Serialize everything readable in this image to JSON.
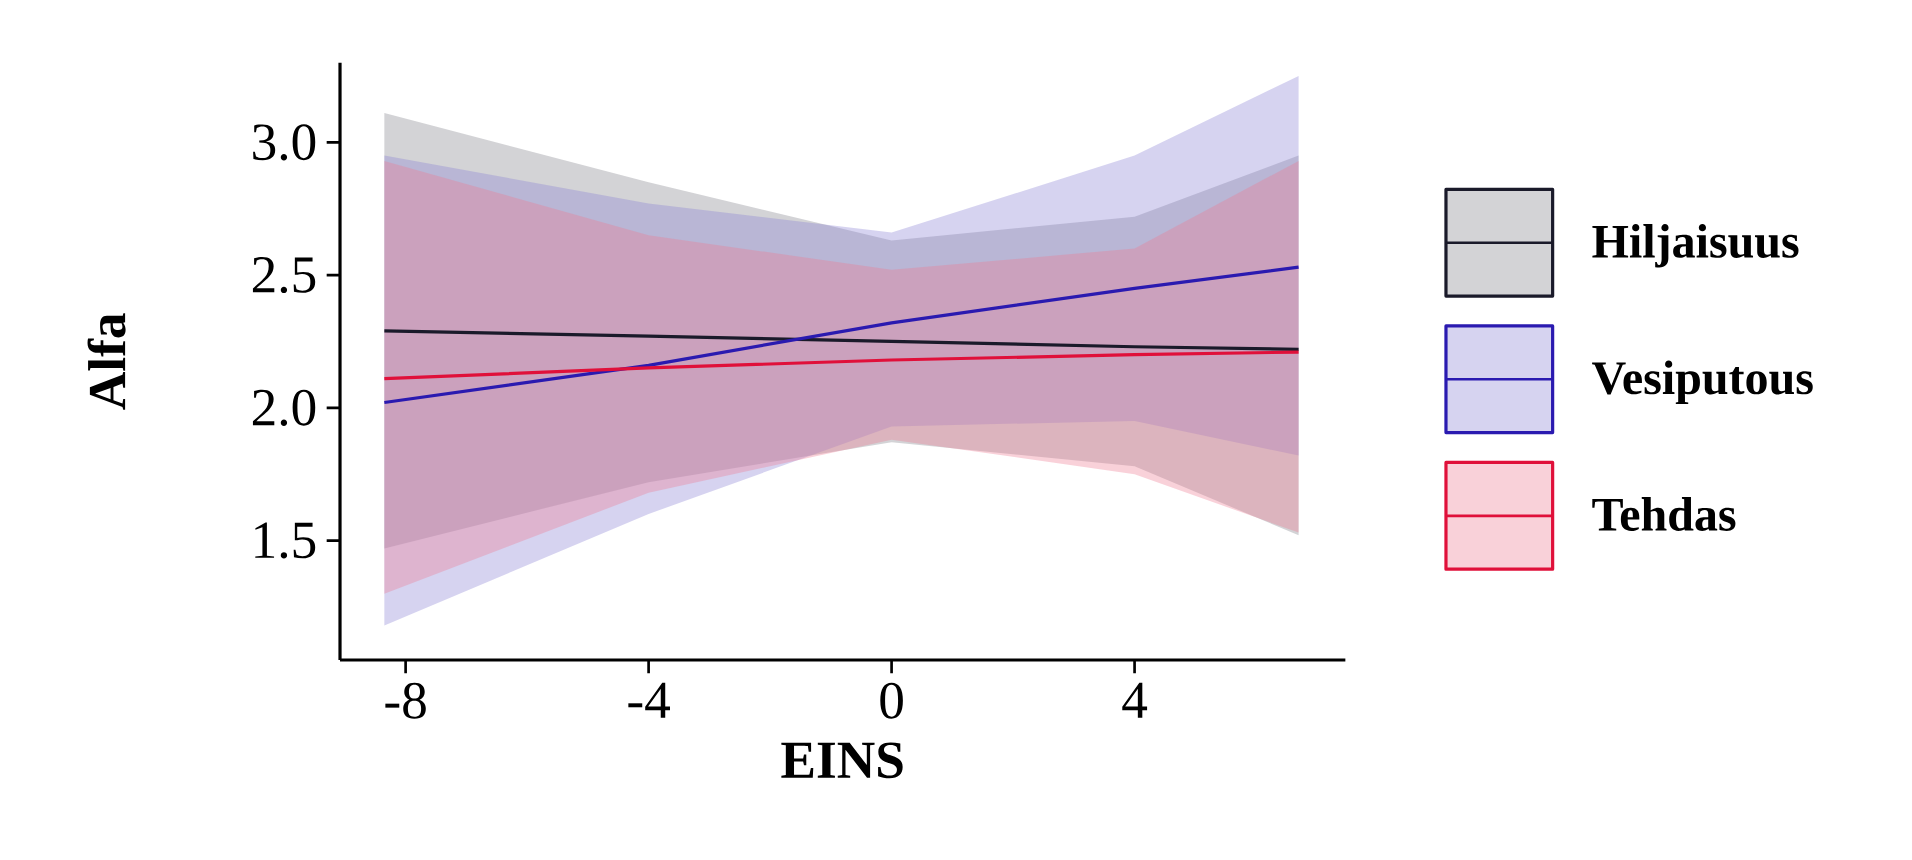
{
  "chart_data": {
    "type": "line",
    "xlabel": "EINS",
    "ylabel": "Alfa",
    "xlim": [
      -9.08,
      7.47
    ],
    "ylim": [
      1.05,
      3.3
    ],
    "xticks": [
      -8,
      -4,
      0,
      4
    ],
    "yticks": [
      {
        "value": 1.5,
        "label": "1.5"
      },
      {
        "value": 2.0,
        "label": "2.0"
      },
      {
        "value": 2.5,
        "label": "2.5"
      },
      {
        "value": 3.0,
        "label": "3.0"
      }
    ],
    "grid": false,
    "legend": "right",
    "marker": "none",
    "line_style": "solid",
    "series": [
      {
        "name": "Hiljaisuus",
        "color": "#1a1a2a",
        "x": [
          -8.35,
          -4,
          0,
          4,
          6.7
        ],
        "values": [
          2.29,
          2.27,
          2.25,
          2.23,
          2.22
        ],
        "lower": [
          1.47,
          1.72,
          1.87,
          1.78,
          1.52
        ],
        "upper": [
          3.11,
          2.85,
          2.63,
          2.72,
          2.95
        ]
      },
      {
        "name": "Vesiputous",
        "color": "#2a1ab0",
        "x": [
          -8.35,
          -4,
          0,
          4,
          6.7
        ],
        "values": [
          2.02,
          2.16,
          2.32,
          2.45,
          2.53
        ],
        "lower": [
          1.18,
          1.6,
          1.93,
          1.95,
          1.82
        ],
        "upper": [
          2.95,
          2.77,
          2.66,
          2.95,
          3.25
        ]
      },
      {
        "name": "Tehdas",
        "color": "#e0103a",
        "x": [
          -8.35,
          -4,
          0,
          4,
          6.7
        ],
        "values": [
          2.11,
          2.15,
          2.18,
          2.2,
          2.21
        ],
        "lower": [
          1.3,
          1.68,
          1.88,
          1.75,
          1.53
        ],
        "upper": [
          2.93,
          2.65,
          2.52,
          2.6,
          2.93
        ]
      }
    ]
  }
}
